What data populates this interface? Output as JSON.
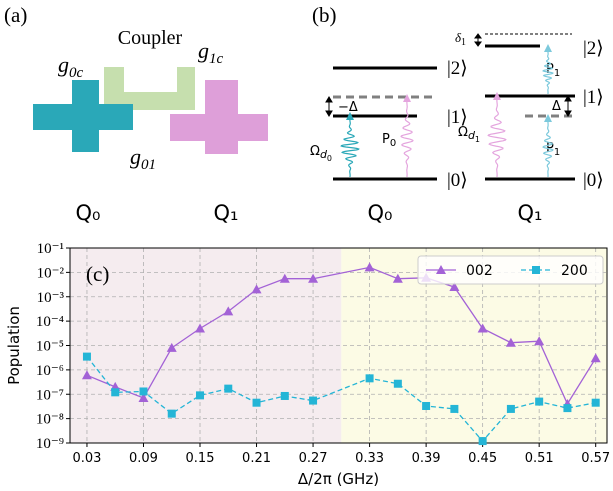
{
  "panel_a": {
    "label": "(a)",
    "coupler": "Coupler",
    "g0c": {
      "symbol": "g",
      "sub": "0c"
    },
    "g1c": {
      "symbol": "g",
      "sub": "1c"
    },
    "g01": {
      "symbol": "g",
      "sub": "01"
    },
    "q0": "Q₀",
    "q1": "Q₁"
  },
  "panel_b": {
    "label": "(b)",
    "q0": {
      "name": "Q₀",
      "ket2": "|2⟩",
      "ket1": "|1⟩",
      "ket0": "|0⟩",
      "detuning": "−Δ",
      "drive": {
        "symbol": "Ω",
        "sub": "d",
        "subsub": "0"
      },
      "pump": {
        "symbol": "P",
        "sub": "0"
      }
    },
    "q1": {
      "name": "Q₁",
      "ket2": "|2⟩",
      "ket1": "|1⟩",
      "ket0": "|0⟩",
      "shift": {
        "symbol": "δ",
        "sub": "1"
      },
      "detuning": "Δ",
      "drive": {
        "symbol": "Ω",
        "sub": "d",
        "subsub": "1"
      },
      "pump_top": {
        "symbol": "P",
        "sub": "1"
      },
      "pump_bottom": {
        "symbol": "P",
        "sub": "1"
      }
    }
  },
  "chart_data": {
    "type": "line",
    "panel_label": "(c)",
    "x_label": "Δ/2π (GHz)",
    "y_label": "Population",
    "x": [
      0.03,
      0.06,
      0.09,
      0.12,
      0.15,
      0.18,
      0.21,
      0.24,
      0.27,
      0.33,
      0.36,
      0.39,
      0.42,
      0.45,
      0.48,
      0.51,
      0.54,
      0.57
    ],
    "series": [
      {
        "name": "002",
        "color": "#a362d6",
        "marker": "triangle",
        "linestyle": "solid",
        "values": [
          6e-07,
          2e-07,
          7e-08,
          8e-06,
          5e-05,
          0.00025,
          0.002,
          0.0055,
          0.0055,
          0.016,
          0.0055,
          0.006,
          0.0025,
          5e-05,
          1.3e-05,
          1.5e-05,
          4e-08,
          3e-06
        ]
      },
      {
        "name": "200",
        "color": "#24b5d6",
        "marker": "square",
        "linestyle": "dashed",
        "values": [
          3.5e-06,
          1.2e-07,
          1.3e-07,
          1.6e-08,
          9e-08,
          1.7e-07,
          4.5e-08,
          8.5e-08,
          5.5e-08,
          4.5e-07,
          2.7e-07,
          3.3e-08,
          2.5e-08,
          1.2e-09,
          2.5e-08,
          5e-08,
          2.7e-08,
          4.5e-08
        ]
      }
    ],
    "xlim": [
      0.012,
      0.582
    ],
    "ylim": [
      1e-09,
      0.1
    ],
    "yscale": "log",
    "xticks": [
      0.03,
      0.09,
      0.15,
      0.21,
      0.27,
      0.33,
      0.39,
      0.45,
      0.51,
      0.57
    ],
    "yticks": [
      {
        "value": 1e-09,
        "label": "10⁻⁹"
      },
      {
        "value": 1e-08,
        "label": "10⁻⁸"
      },
      {
        "value": 1e-07,
        "label": "10⁻⁷"
      },
      {
        "value": 1e-06,
        "label": "10⁻⁶"
      },
      {
        "value": 1e-05,
        "label": "10⁻⁵"
      },
      {
        "value": 0.0001,
        "label": "10⁻⁴"
      },
      {
        "value": 0.001,
        "label": "10⁻³"
      },
      {
        "value": 0.01,
        "label": "10⁻²"
      },
      {
        "value": 0.1,
        "label": "10⁻¹"
      }
    ],
    "regions": [
      {
        "x0": 0.012,
        "x1": 0.3,
        "color": "#f5ecef"
      },
      {
        "x0": 0.3,
        "x1": 0.582,
        "color": "#fcfbe5"
      }
    ],
    "grid": true,
    "legend": "upper right"
  }
}
